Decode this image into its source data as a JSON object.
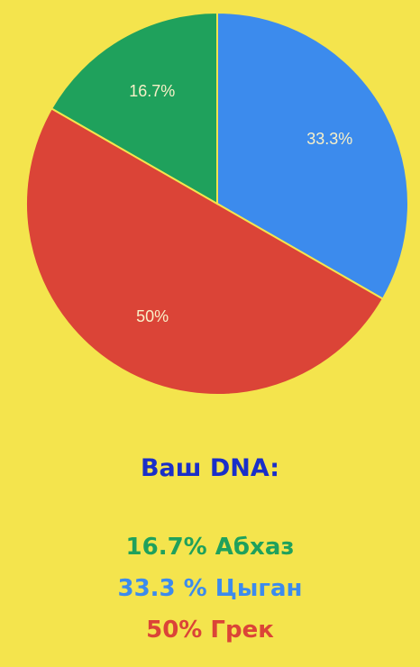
{
  "chart_data": {
    "type": "pie",
    "slices": [
      {
        "label": "33.3%",
        "value": 33.3,
        "color": "#3c8bed"
      },
      {
        "label": "50%",
        "value": 50,
        "color": "#db4437"
      },
      {
        "label": "16.7%",
        "value": 16.7,
        "color": "#1fa15c"
      }
    ],
    "start_angle_deg": 0,
    "direction": "clockwise"
  },
  "result": {
    "heading": "Ваш DNA:",
    "heading_color": "#1a2fc8",
    "lines": [
      {
        "text": "16.7% Абхаз",
        "color": "#1fa15c"
      },
      {
        "text": "33.3 % Цыган",
        "color": "#3c8bed"
      },
      {
        "text": "50% Грек",
        "color": "#db4437"
      }
    ]
  }
}
